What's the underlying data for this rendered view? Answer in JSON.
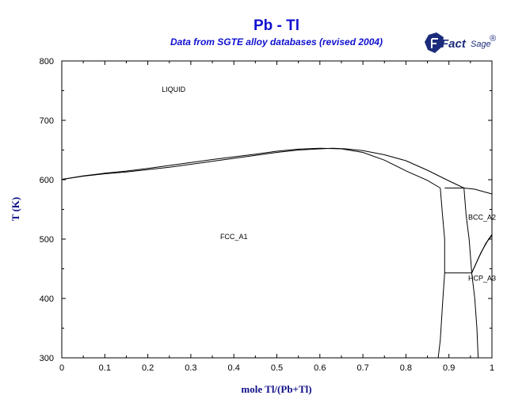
{
  "chart_data": {
    "type": "line",
    "title": "Pb - Tl",
    "subtitle": "Data from SGTE alloy databases (revised 2004)",
    "xlabel": "mole Tl/(Pb+Tl)",
    "ylabel": "T (K)",
    "xlim": [
      0,
      1
    ],
    "ylim": [
      300,
      800
    ],
    "x_ticks": [
      0,
      0.1,
      0.2,
      0.3,
      0.4,
      0.5,
      0.6,
      0.7,
      0.8,
      0.9,
      1
    ],
    "y_ticks": [
      300,
      400,
      500,
      600,
      700,
      800
    ],
    "grid": false,
    "phase_labels": [
      {
        "text": "LIQUID",
        "x": 0.26,
        "y": 748
      },
      {
        "text": "FCC_A1",
        "x": 0.4,
        "y": 500
      },
      {
        "text": "BCC_A2",
        "x": 0.977,
        "y": 533
      },
      {
        "text": "HCP_A3",
        "x": 0.977,
        "y": 430
      }
    ],
    "series": [
      {
        "values": [
          [
            0,
            600.5
          ],
          [
            0.05,
            606
          ],
          [
            0.1,
            610
          ],
          [
            0.15,
            613
          ],
          [
            0.2,
            617
          ],
          [
            0.25,
            621
          ],
          [
            0.3,
            626
          ],
          [
            0.35,
            631
          ],
          [
            0.4,
            636
          ],
          [
            0.45,
            641
          ],
          [
            0.5,
            646
          ],
          [
            0.55,
            650
          ],
          [
            0.6,
            652
          ],
          [
            0.63,
            653
          ],
          [
            0.66,
            652
          ],
          [
            0.7,
            649
          ],
          [
            0.75,
            642
          ],
          [
            0.8,
            632
          ],
          [
            0.85,
            616
          ],
          [
            0.9,
            598
          ],
          [
            0.935,
            586
          ]
        ]
      },
      {
        "values": [
          [
            0,
            600.5
          ],
          [
            0.05,
            606.5
          ],
          [
            0.1,
            611
          ],
          [
            0.15,
            614.5
          ],
          [
            0.2,
            619
          ],
          [
            0.25,
            624
          ],
          [
            0.3,
            629
          ],
          [
            0.35,
            634
          ],
          [
            0.4,
            638.5
          ],
          [
            0.45,
            643
          ],
          [
            0.5,
            648
          ],
          [
            0.55,
            651.5
          ],
          [
            0.6,
            653
          ],
          [
            0.65,
            652
          ],
          [
            0.7,
            646
          ],
          [
            0.75,
            633
          ],
          [
            0.8,
            615
          ],
          [
            0.85,
            599
          ],
          [
            0.88,
            586
          ]
        ]
      },
      {
        "values": [
          [
            0.88,
            586
          ],
          [
            0.885,
            540
          ],
          [
            0.89,
            500
          ],
          [
            0.89,
            443
          ],
          [
            0.885,
            390
          ],
          [
            0.88,
            330
          ],
          [
            0.875,
            300
          ]
        ]
      },
      {
        "values": [
          [
            0.935,
            586
          ],
          [
            0.94,
            540
          ],
          [
            0.947,
            500
          ],
          [
            0.953,
            443
          ]
        ]
      },
      {
        "values": [
          [
            0.953,
            443
          ],
          [
            0.96,
            400
          ],
          [
            0.965,
            350
          ],
          [
            0.968,
            300
          ]
        ]
      },
      {
        "values": [
          [
            0.953,
            443
          ],
          [
            0.97,
            470
          ],
          [
            0.985,
            492
          ],
          [
            1,
            508
          ]
        ]
      },
      {
        "values": [
          [
            0.953,
            443
          ],
          [
            0.975,
            478
          ],
          [
            0.99,
            497
          ],
          [
            1,
            506
          ]
        ]
      },
      {
        "values": [
          [
            0.935,
            586
          ],
          [
            0.96,
            584
          ],
          [
            0.98,
            580
          ],
          [
            1,
            576
          ]
        ]
      },
      {
        "values": [
          [
            0.89,
            586
          ],
          [
            0.935,
            586
          ]
        ]
      },
      {
        "values": [
          [
            0.89,
            443
          ],
          [
            0.953,
            443
          ]
        ]
      }
    ]
  },
  "logo": {
    "part1": "Fact",
    "part2": "Sage",
    "mark": "®",
    "icon": "factsage-logo-icon",
    "color": "#1c2c7c"
  },
  "colors": {
    "title": "#1010d0",
    "axis_label": "#10108a",
    "lines": "#000000"
  }
}
